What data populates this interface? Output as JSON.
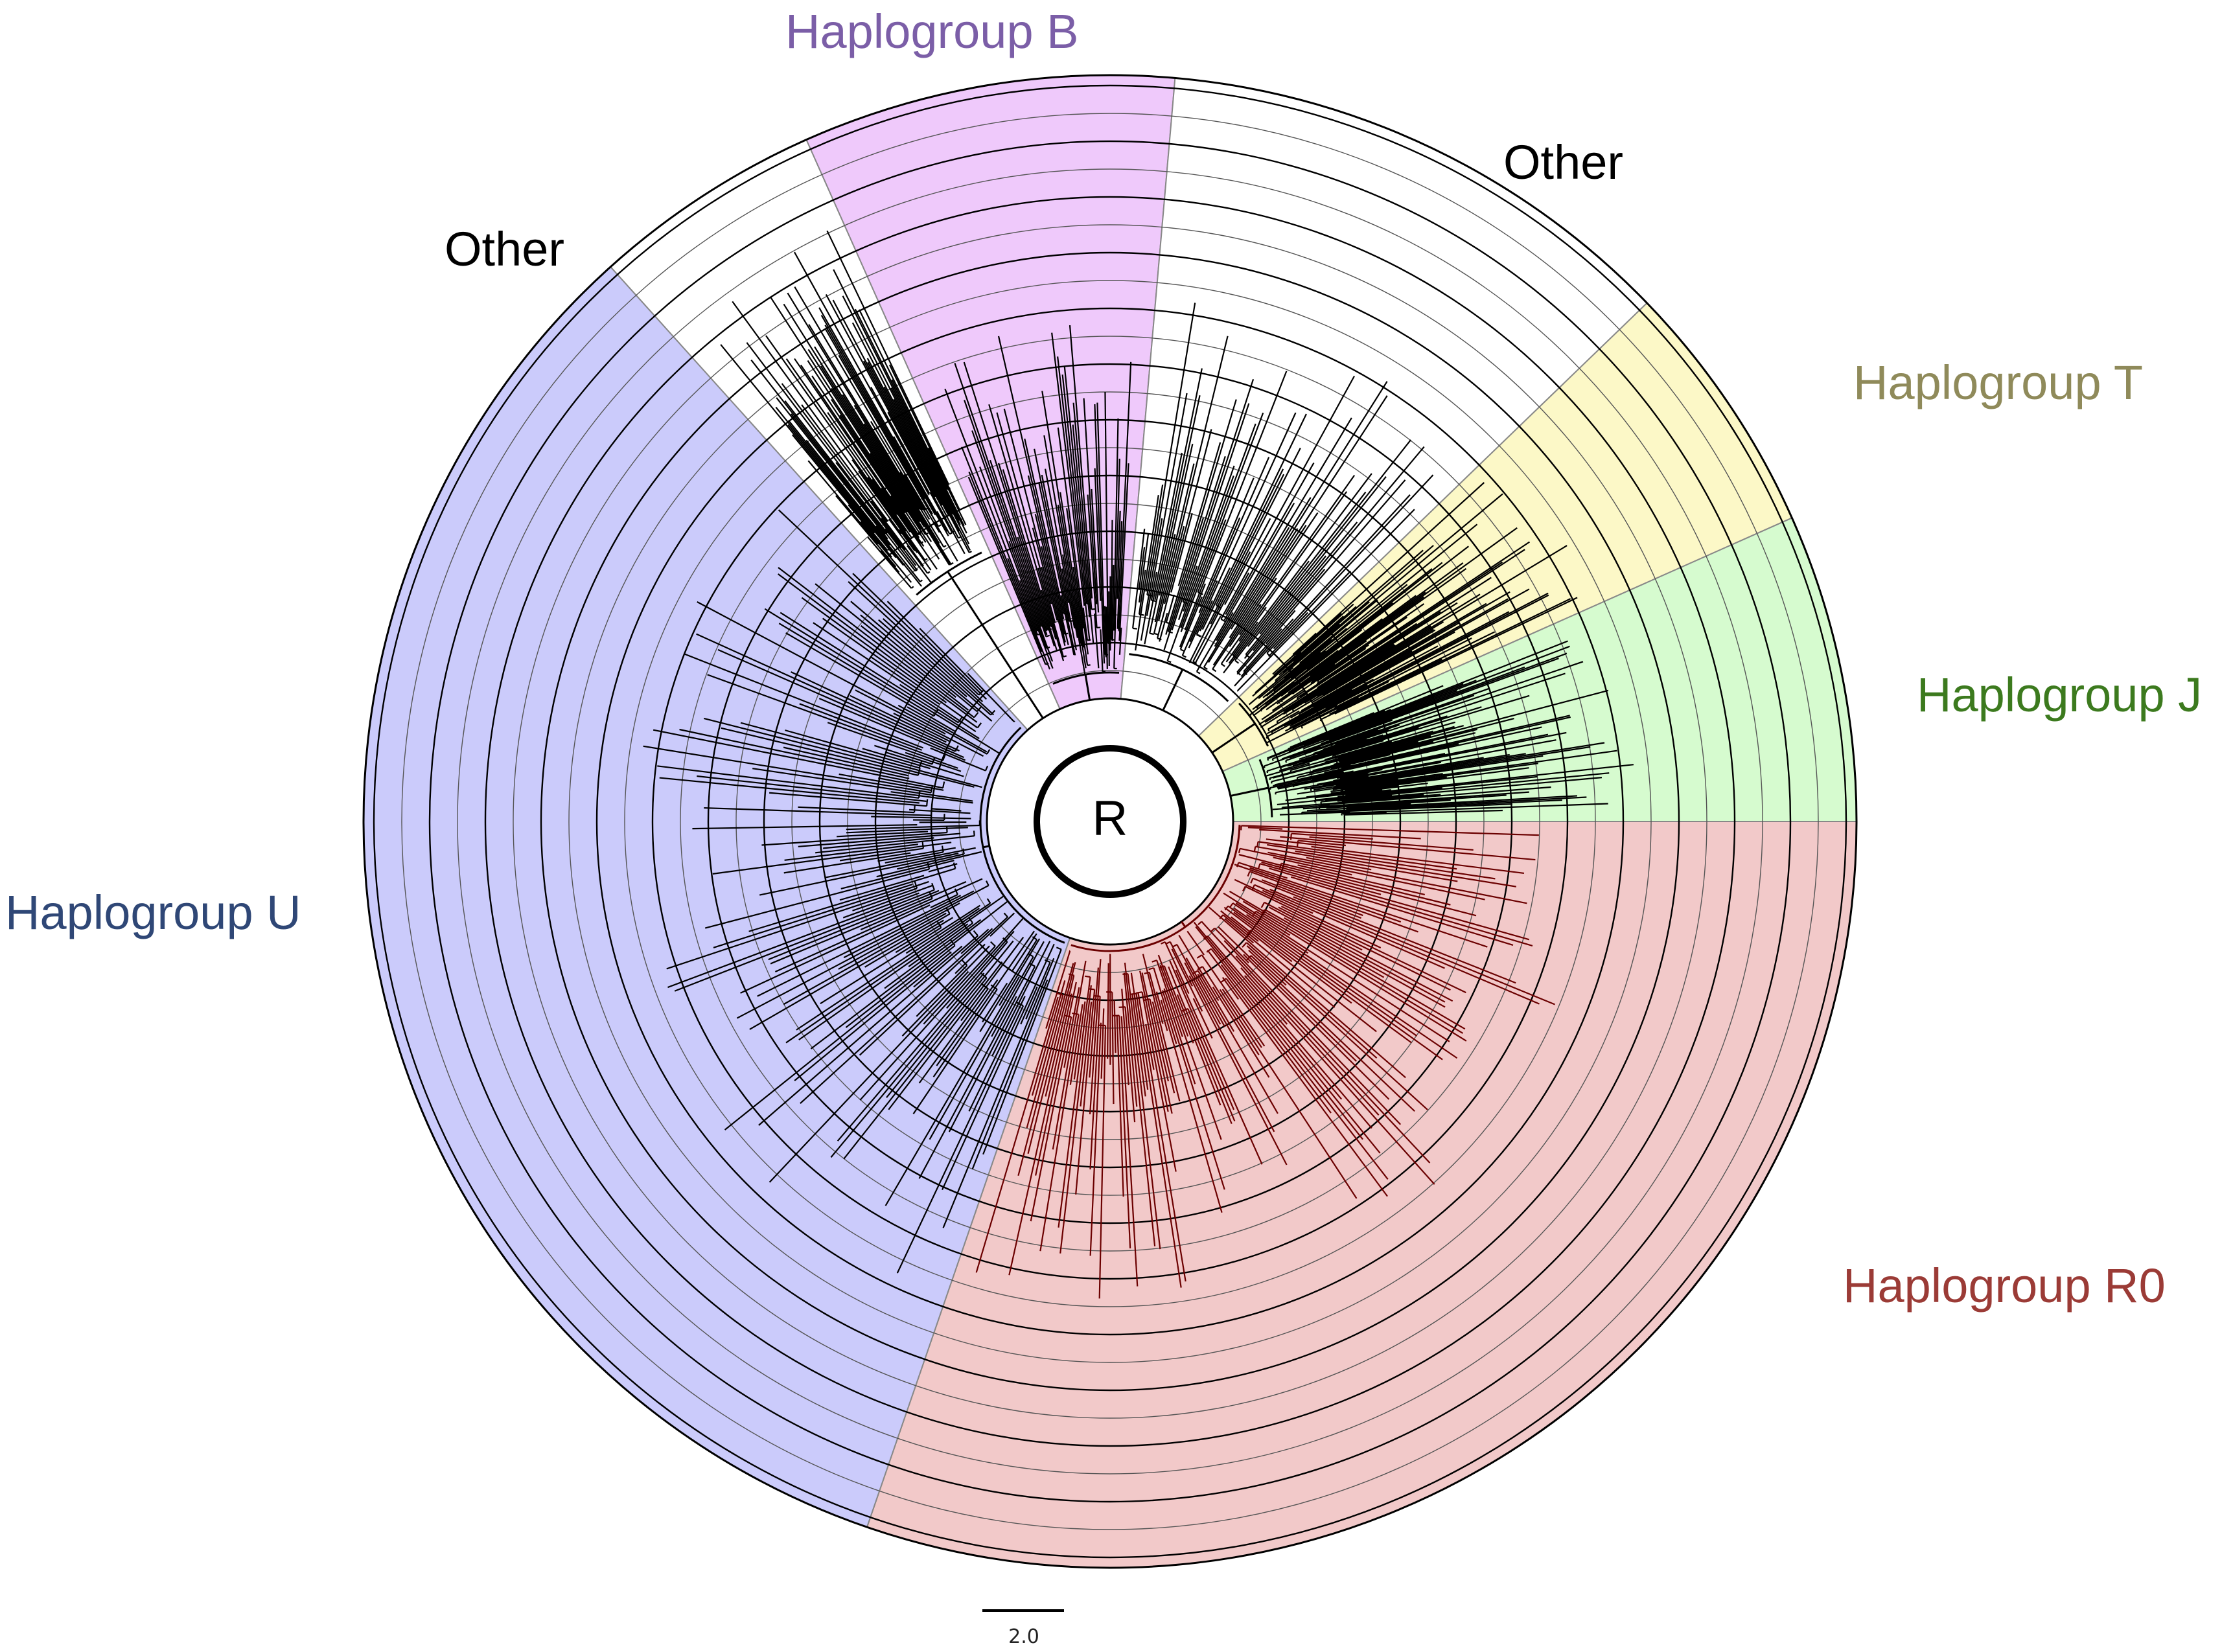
{
  "root_label": "R",
  "scale_bar": {
    "label": "2.0"
  },
  "clades": [
    {
      "id": "other-upper-left",
      "label": "Other",
      "color": "#ffffff",
      "label_color": "#000000",
      "branch_color": "#000000"
    },
    {
      "id": "haplogroup-b",
      "label": "Haplogroup B",
      "color": "#efc9fb",
      "label_color": "#7b5ea7",
      "branch_color": "#000000"
    },
    {
      "id": "other-upper-right",
      "label": "Other",
      "color": "#ffffff",
      "label_color": "#000000",
      "branch_color": "#000000"
    },
    {
      "id": "haplogroup-t",
      "label": "Haplogroup T",
      "color": "#fcf8c7",
      "label_color": "#8f8a5a",
      "branch_color": "#000000"
    },
    {
      "id": "haplogroup-j",
      "label": "Haplogroup J",
      "color": "#d6fbcf",
      "label_color": "#3c7a1e",
      "branch_color": "#000000"
    },
    {
      "id": "haplogroup-r0",
      "label": "Haplogroup R0",
      "color": "#f2c9c9",
      "label_color": "#9b3b36",
      "branch_color": "#6b0000"
    },
    {
      "id": "haplogroup-u",
      "label": "Haplogroup U",
      "color": "#cbcbfb",
      "label_color": "#2f4776",
      "branch_color": "#000000"
    }
  ]
}
